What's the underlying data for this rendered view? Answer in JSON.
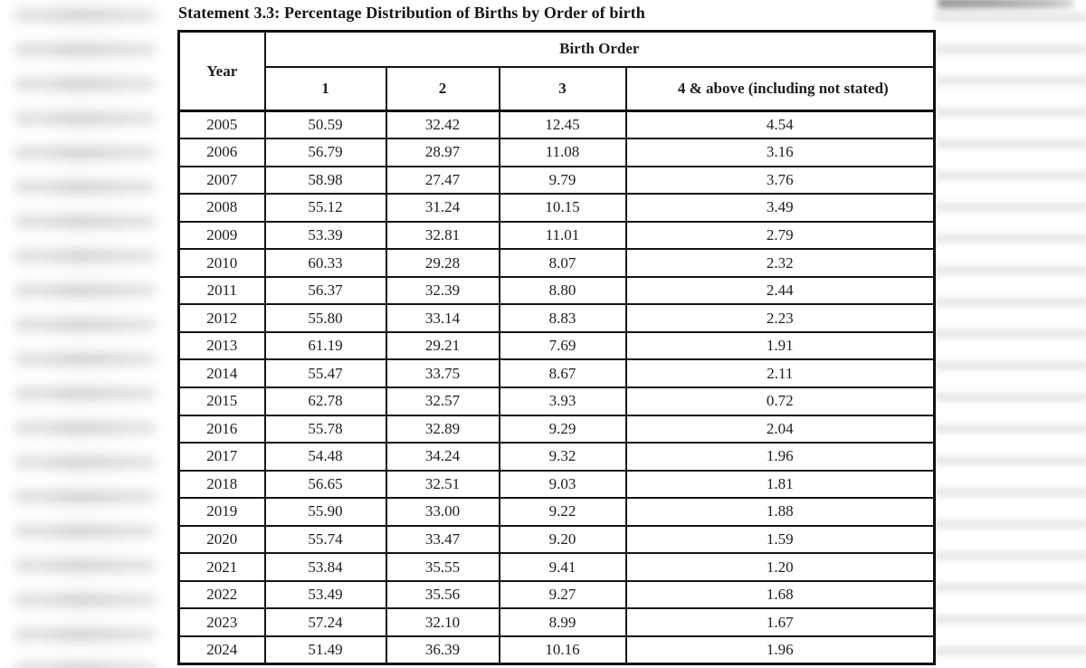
{
  "document": {
    "title": "Statement 3.3: Percentage Distribution of Births by Order of birth",
    "table": {
      "year_header": "Year",
      "group_header": "Birth Order",
      "order_headers": [
        "1",
        "2",
        "3",
        "4 & above (including not stated)"
      ],
      "rows": [
        {
          "year": "2005",
          "values": [
            "50.59",
            "32.42",
            "12.45",
            "4.54"
          ]
        },
        {
          "year": "2006",
          "values": [
            "56.79",
            "28.97",
            "11.08",
            "3.16"
          ]
        },
        {
          "year": "2007",
          "values": [
            "58.98",
            "27.47",
            "9.79",
            "3.76"
          ]
        },
        {
          "year": "2008",
          "values": [
            "55.12",
            "31.24",
            "10.15",
            "3.49"
          ]
        },
        {
          "year": "2009",
          "values": [
            "53.39",
            "32.81",
            "11.01",
            "2.79"
          ]
        },
        {
          "year": "2010",
          "values": [
            "60.33",
            "29.28",
            "8.07",
            "2.32"
          ]
        },
        {
          "year": "2011",
          "values": [
            "56.37",
            "32.39",
            "8.80",
            "2.44"
          ]
        },
        {
          "year": "2012",
          "values": [
            "55.80",
            "33.14",
            "8.83",
            "2.23"
          ]
        },
        {
          "year": "2013",
          "values": [
            "61.19",
            "29.21",
            "7.69",
            "1.91"
          ]
        },
        {
          "year": "2014",
          "values": [
            "55.47",
            "33.75",
            "8.67",
            "2.11"
          ]
        },
        {
          "year": "2015",
          "values": [
            "62.78",
            "32.57",
            "3.93",
            "0.72"
          ]
        },
        {
          "year": "2016",
          "values": [
            "55.78",
            "32.89",
            "9.29",
            "2.04"
          ]
        },
        {
          "year": "2017",
          "values": [
            "54.48",
            "34.24",
            "9.32",
            "1.96"
          ]
        },
        {
          "year": "2018",
          "values": [
            "56.65",
            "32.51",
            "9.03",
            "1.81"
          ]
        },
        {
          "year": "2019",
          "values": [
            "55.90",
            "33.00",
            "9.22",
            "1.88"
          ]
        },
        {
          "year": "2020",
          "values": [
            "55.74",
            "33.47",
            "9.20",
            "1.59"
          ]
        },
        {
          "year": "2021",
          "values": [
            "53.84",
            "35.55",
            "9.41",
            "1.20"
          ]
        },
        {
          "year": "2022",
          "values": [
            "53.49",
            "35.56",
            "9.27",
            "1.68"
          ]
        },
        {
          "year": "2023",
          "values": [
            "57.24",
            "32.10",
            "8.99",
            "1.67"
          ]
        },
        {
          "year": "2024",
          "values": [
            "51.49",
            "36.39",
            "10.16",
            "1.96"
          ]
        }
      ]
    }
  },
  "colors": {
    "border": "#141414",
    "text": "#1e1e1e",
    "background": "#ffffff",
    "blur_strip_gray": "#d7d7d7"
  }
}
